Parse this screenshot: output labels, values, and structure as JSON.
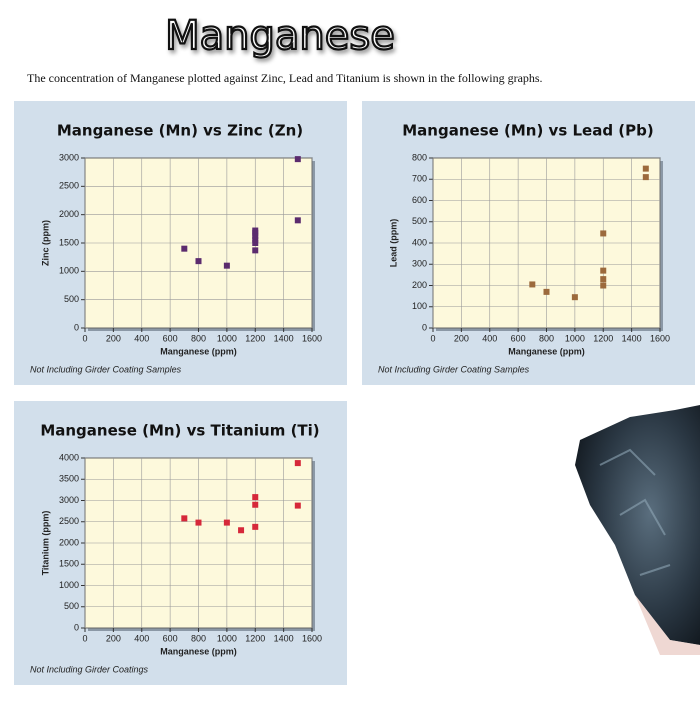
{
  "header": {
    "title": "Manganese",
    "intro": "The concentration of Manganese plotted against Zinc, Lead and Titanium is shown in the following graphs."
  },
  "chart_data": [
    {
      "type": "scatter",
      "title": "Manganese (Mn) vs Zinc (Zn)",
      "xlabel": "Manganese (ppm)",
      "ylabel": "Zinc (ppm)",
      "note": "Not Including Girder Coating Samples",
      "x": [
        700,
        800,
        1000,
        1200,
        1200,
        1200,
        1200,
        1200,
        1200,
        1500,
        1500
      ],
      "y": [
        1400,
        1180,
        1100,
        1370,
        1500,
        1560,
        1620,
        1680,
        1720,
        1900,
        2980
      ],
      "color": "#5b2b6e",
      "xlim": [
        0,
        1600
      ],
      "xticks": [
        0,
        200,
        400,
        600,
        800,
        1000,
        1200,
        1400,
        1600
      ],
      "ylim": [
        0,
        3000
      ],
      "yticks": [
        0,
        500,
        1000,
        1500,
        2000,
        2500,
        3000
      ],
      "grid": true
    },
    {
      "type": "scatter",
      "title": "Manganese (Mn) vs Lead (Pb)",
      "xlabel": "Manganese (ppm)",
      "ylabel": "Lead (ppm)",
      "note": "Not Including Girder Coating Samples",
      "x": [
        700,
        800,
        1000,
        1200,
        1200,
        1200,
        1200,
        1500,
        1500
      ],
      "y": [
        205,
        170,
        145,
        200,
        230,
        270,
        445,
        710,
        750
      ],
      "color": "#9c6a3c",
      "xlim": [
        0,
        1600
      ],
      "xticks": [
        0,
        200,
        400,
        600,
        800,
        1000,
        1200,
        1400,
        1600
      ],
      "ylim": [
        0,
        800
      ],
      "yticks": [
        0,
        100,
        200,
        300,
        400,
        500,
        600,
        700,
        800
      ],
      "grid": true
    },
    {
      "type": "scatter",
      "title": "Manganese (Mn) vs Titanium (Ti)",
      "xlabel": "Manganese (ppm)",
      "ylabel": "Titanium (ppm)",
      "note": "Not Including Girder Coatings",
      "x": [
        700,
        800,
        1000,
        1100,
        1200,
        1200,
        1200,
        1500,
        1500
      ],
      "y": [
        2580,
        2480,
        2480,
        2300,
        2380,
        2900,
        3080,
        2880,
        3880
      ],
      "color": "#d6283a",
      "xlim": [
        0,
        1600
      ],
      "xticks": [
        0,
        200,
        400,
        600,
        800,
        1000,
        1200,
        1400,
        1600
      ],
      "ylim": [
        0,
        4000
      ],
      "yticks": [
        0,
        500,
        1000,
        1500,
        2000,
        2500,
        3000,
        3500,
        4000
      ],
      "grid": true
    }
  ]
}
